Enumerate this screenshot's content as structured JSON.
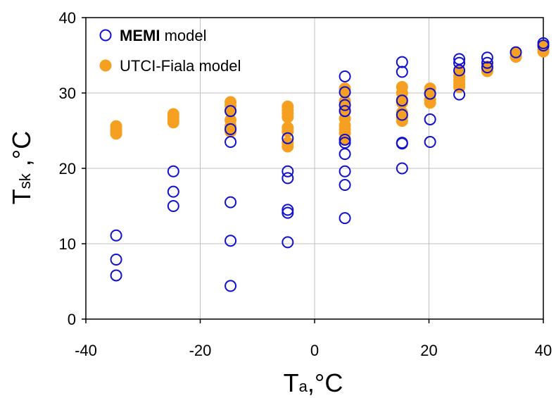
{
  "chart_data": {
    "type": "scatter",
    "xlabel": {
      "main": "T",
      "sub": "a",
      "rest": ",°C"
    },
    "ylabel": {
      "main": "T",
      "sub": "sk",
      "rest": " ,°C"
    },
    "xlim": [
      -40,
      40
    ],
    "ylim": [
      0,
      40
    ],
    "xticks": [
      -40,
      -20,
      0,
      20,
      40
    ],
    "yticks": [
      0,
      10,
      20,
      30,
      40
    ],
    "grid": true,
    "legend_position": "top-left",
    "series": [
      {
        "name_bold": "MEMI",
        "name_rest": " model",
        "marker": "open-circle",
        "color": "#1010d0",
        "x": [
          -34.7,
          -34.7,
          -34.7,
          -24.7,
          -24.7,
          -24.7,
          -14.7,
          -14.7,
          -14.7,
          -14.7,
          -14.7,
          -14.7,
          -4.7,
          -4.7,
          -4.7,
          -4.7,
          -4.7,
          -4.7,
          5.3,
          5.3,
          5.3,
          5.3,
          5.3,
          5.3,
          5.3,
          5.3,
          5.3,
          5.3,
          15.3,
          15.3,
          15.3,
          15.3,
          15.3,
          15.3,
          15.3,
          20.2,
          20.2,
          20.2,
          25.3,
          25.3,
          25.3,
          25.3,
          30.2,
          30.2,
          30.2,
          35.2,
          40,
          40
        ],
        "y": [
          11.1,
          7.9,
          5.8,
          19.6,
          16.9,
          15.0,
          27.6,
          25.2,
          23.5,
          15.5,
          10.4,
          4.4,
          24.0,
          19.6,
          18.7,
          14.5,
          14.1,
          10.2,
          32.2,
          28.4,
          27.6,
          23.8,
          23.4,
          21.9,
          19.6,
          17.8,
          13.4,
          30.1,
          34.1,
          32.8,
          29.0,
          27.1,
          23.4,
          23.3,
          20.0,
          29.9,
          26.5,
          23.5,
          34.5,
          34.0,
          33.0,
          29.8,
          34.7,
          34.0,
          33.4,
          35.4,
          36.6,
          36.3
        ]
      },
      {
        "name_bold": "",
        "name_rest": "UTCI-Fiala model",
        "marker": "filled-circle",
        "color": "#f5a020",
        "x": [
          -34.7,
          -34.7,
          -34.7,
          -34.7,
          -24.7,
          -24.7,
          -24.7,
          -24.7,
          -14.7,
          -14.7,
          -14.7,
          -14.7,
          -14.7,
          -14.7,
          -4.7,
          -4.7,
          -4.7,
          -4.7,
          -4.7,
          -4.7,
          -4.7,
          -4.7,
          5.3,
          5.3,
          5.3,
          5.3,
          5.3,
          5.3,
          5.3,
          5.3,
          5.3,
          15.3,
          15.3,
          15.3,
          15.3,
          15.3,
          15.3,
          15.3,
          20.2,
          20.2,
          20.2,
          20.2,
          25.3,
          25.3,
          25.3,
          25.3,
          25.3,
          30.2,
          30.2,
          30.2,
          35.2,
          35.2,
          40,
          40,
          40
        ],
        "y": [
          25.6,
          25.2,
          24.9,
          24.6,
          27.2,
          26.8,
          26.4,
          26.1,
          28.8,
          28.3,
          27.7,
          26.4,
          25.6,
          24.9,
          28.2,
          27.7,
          27.3,
          26.8,
          25.4,
          24.9,
          23.4,
          22.9,
          30.6,
          30.1,
          28.9,
          27.8,
          26.6,
          25.7,
          25.2,
          24.7,
          23.9,
          30.8,
          30.0,
          29.1,
          28.7,
          27.4,
          26.8,
          26.3,
          30.6,
          30.0,
          29.1,
          28.7,
          32.8,
          32.2,
          31.7,
          31.2,
          30.8,
          33.5,
          33.0,
          32.9,
          35.4,
          34.8,
          36.2,
          35.8,
          35.5
        ]
      }
    ]
  }
}
